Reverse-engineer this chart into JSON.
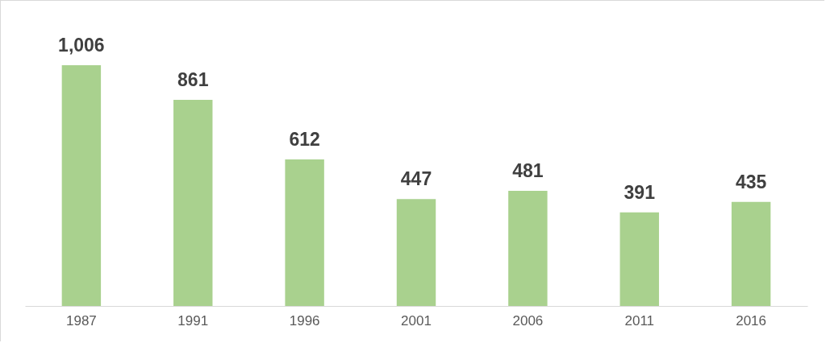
{
  "chart_data": {
    "type": "bar",
    "categories": [
      "1987",
      "1991",
      "1996",
      "2001",
      "2006",
      "2011",
      "2016"
    ],
    "values": [
      1006,
      861,
      612,
      447,
      481,
      391,
      435
    ],
    "value_labels": [
      "1,006",
      "861",
      "612",
      "447",
      "481",
      "391",
      "435"
    ],
    "color": "#a9d18e"
  }
}
